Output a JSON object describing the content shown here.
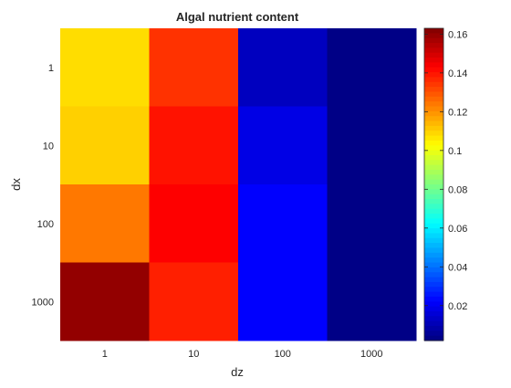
{
  "chart_data": {
    "type": "heatmap",
    "title": "Algal nutrient content",
    "xlabel": "dz",
    "ylabel": "dx",
    "x_categories": [
      "1",
      "10",
      "100",
      "1000"
    ],
    "y_categories": [
      "1",
      "10",
      "100",
      "1000"
    ],
    "values": [
      [
        0.108,
        0.135,
        0.012,
        0.003
      ],
      [
        0.11,
        0.14,
        0.018,
        0.003
      ],
      [
        0.124,
        0.143,
        0.022,
        0.003
      ],
      [
        0.16,
        0.138,
        0.022,
        0.003
      ]
    ],
    "colorbar": {
      "range": [
        0.002,
        0.163
      ],
      "ticks": [
        0.02,
        0.04,
        0.06,
        0.08,
        0.1,
        0.12,
        0.14,
        0.16
      ],
      "tick_labels": [
        "0.02",
        "0.04",
        "0.06",
        "0.08",
        "0.1",
        "0.12",
        "0.14",
        "0.16"
      ],
      "colormap": "jet"
    },
    "grid": false
  }
}
